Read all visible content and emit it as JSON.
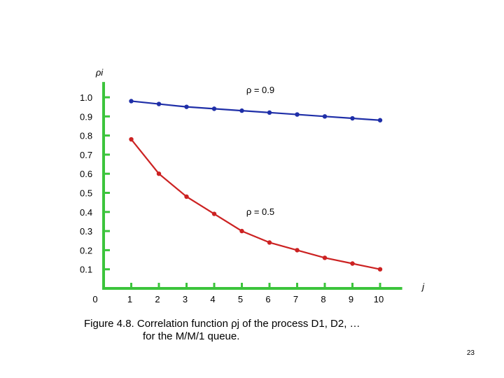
{
  "chart_data": {
    "type": "line",
    "ylabel": "ρi",
    "xlabel": "j",
    "xlim": [
      0,
      10.8
    ],
    "ylim": [
      0,
      1.08
    ],
    "y_ticks": [
      {
        "value": 1.0,
        "label": "1.0"
      },
      {
        "value": 0.9,
        "label": "0.9"
      },
      {
        "value": 0.8,
        "label": "0.8"
      },
      {
        "value": 0.7,
        "label": "0.7"
      },
      {
        "value": 0.6,
        "label": "0.6"
      },
      {
        "value": 0.5,
        "label": "0.5"
      },
      {
        "value": 0.4,
        "label": "0.4"
      },
      {
        "value": 0.3,
        "label": "0.3"
      },
      {
        "value": 0.2,
        "label": "0.2"
      },
      {
        "value": 0.1,
        "label": "0.1"
      }
    ],
    "x_ticks": [
      {
        "value": 1,
        "label": "1"
      },
      {
        "value": 2,
        "label": "2"
      },
      {
        "value": 3,
        "label": "3"
      },
      {
        "value": 4,
        "label": "4"
      },
      {
        "value": 5,
        "label": "5"
      },
      {
        "value": 6,
        "label": "6"
      },
      {
        "value": 7,
        "label": "7"
      },
      {
        "value": 8,
        "label": "8"
      },
      {
        "value": 9,
        "label": "9"
      },
      {
        "value": 10,
        "label": "10"
      }
    ],
    "origin_label": "0",
    "series": [
      {
        "name": "ρ = 0.9",
        "color": "#1f2fa8",
        "x": [
          1,
          2,
          3,
          4,
          5,
          6,
          7,
          8,
          9,
          10
        ],
        "values": [
          0.98,
          0.965,
          0.95,
          0.94,
          0.93,
          0.92,
          0.91,
          0.9,
          0.89,
          0.88
        ]
      },
      {
        "name": "ρ = 0.5",
        "color": "#cc2222",
        "x": [
          1,
          2,
          3,
          4,
          5,
          6,
          7,
          8,
          9,
          10
        ],
        "values": [
          0.78,
          0.6,
          0.48,
          0.39,
          0.3,
          0.24,
          0.2,
          0.16,
          0.13,
          0.1
        ]
      }
    ]
  },
  "caption": {
    "line1": "Figure 4.8. Correlation function ρj of the process D1, D2, …",
    "line2": "for the M/M/1 queue."
  },
  "page_number": "23",
  "colors": {
    "axis": "#3cc43c"
  }
}
